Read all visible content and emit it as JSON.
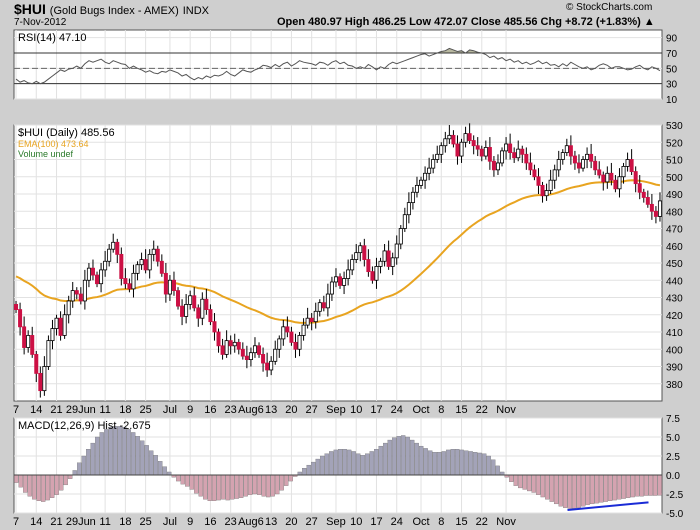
{
  "header": {
    "symbol": "$HUI",
    "name": "(Gold Bugs Index - AMEX)",
    "exchange": "INDX",
    "date": "7-Nov-2012",
    "quote": "Open 480.97  High 486.25  Low 472.07  Close 485.56  Chg +8.72 (+1.83%) ▲",
    "brand": "© StockCharts.com"
  },
  "colors": {
    "up": "#ffffff",
    "down": "#cc1044",
    "ema": "#e8a420",
    "macd_hist_pos": "#a3a3b8",
    "macd_hist_neg": "#d4a3b0",
    "trend": "#1a2bd6"
  },
  "chart_data": [
    {
      "type": "line",
      "title": "RSI(14) 47.10",
      "ylim": [
        10,
        100
      ],
      "yticks": [
        10,
        30,
        50,
        70,
        90
      ],
      "levels": [
        70,
        50,
        30
      ],
      "x": [
        0,
        1,
        2,
        3,
        4,
        5,
        6,
        7,
        8,
        9,
        10,
        11,
        12,
        13,
        14,
        15,
        16,
        17,
        18,
        19,
        20,
        21,
        22,
        23,
        24,
        25,
        26,
        27,
        28,
        29,
        30,
        31,
        32,
        33,
        34,
        35,
        36,
        37,
        38,
        39,
        40,
        41,
        42,
        43,
        44,
        45,
        46,
        47,
        48,
        49,
        50,
        51,
        52,
        53,
        54,
        55,
        56,
        57,
        58,
        59,
        60,
        61,
        62,
        63,
        64,
        65,
        66,
        67,
        68,
        69,
        70,
        71,
        72,
        73,
        74,
        75,
        76,
        77,
        78,
        79,
        80,
        81,
        82,
        83,
        84,
        85,
        86,
        87,
        88,
        89,
        90,
        91,
        92,
        93,
        94,
        95,
        96,
        97,
        98,
        99,
        100,
        101,
        102,
        103,
        104,
        105,
        106,
        107,
        108,
        109,
        110,
        111,
        112,
        113,
        114,
        115,
        116,
        117,
        118,
        119,
        120,
        121,
        122,
        123,
        124,
        125,
        126,
        127,
        128,
        129,
        130,
        131,
        132,
        133,
        134,
        135,
        136,
        137,
        138,
        139,
        140,
        141,
        142,
        143,
        144,
        145,
        146,
        147,
        148,
        149,
        150,
        151,
        152,
        153,
        154,
        155,
        156,
        157,
        158,
        159
      ],
      "values": [
        36,
        32,
        34,
        31,
        30,
        33,
        30,
        32,
        36,
        40,
        44,
        48,
        46,
        49,
        50,
        53,
        50,
        56,
        60,
        58,
        60,
        62,
        58,
        56,
        60,
        58,
        56,
        55,
        50,
        53,
        50,
        48,
        45,
        47,
        44,
        43,
        46,
        45,
        48,
        46,
        44,
        40,
        42,
        38,
        35,
        38,
        36,
        40,
        38,
        41,
        40,
        42,
        46,
        42,
        40,
        44,
        48,
        46,
        45,
        48,
        50,
        54,
        53,
        51,
        55,
        52,
        56,
        58,
        53,
        56,
        60,
        58,
        57,
        56,
        54,
        58,
        57,
        54,
        58,
        60,
        56,
        58,
        54,
        53,
        50,
        52,
        50,
        55,
        52,
        48,
        52,
        50,
        55,
        58,
        56,
        58,
        60,
        62,
        64,
        66,
        68,
        69,
        66,
        68,
        70,
        72,
        73,
        76,
        74,
        72,
        73,
        70,
        74,
        73,
        71,
        70,
        68,
        64,
        66,
        62,
        64,
        60,
        62,
        58,
        60,
        56,
        58,
        55,
        57,
        60,
        56,
        58,
        54,
        55,
        52,
        56,
        53,
        58,
        55,
        52,
        50,
        52,
        48,
        50,
        54,
        56,
        54,
        50,
        52,
        52,
        50,
        48,
        49,
        52,
        54,
        50,
        48,
        52,
        50,
        47
      ]
    },
    {
      "type": "candlestick",
      "title": "$HUI (Daily) 485.56",
      "legend": [
        "EMA(100) 473.64",
        "Volume undef"
      ],
      "ylim": [
        370,
        530
      ],
      "yticks": [
        380,
        390,
        400,
        410,
        420,
        430,
        440,
        450,
        460,
        470,
        480,
        490,
        500,
        510,
        520,
        530
      ],
      "xticks": [
        "7",
        "14",
        "21",
        "29Jun",
        "11",
        "18",
        "25",
        "Jul",
        "9",
        "16",
        "23",
        "Aug6",
        "13",
        "20",
        "27",
        "Sep",
        "10",
        "17",
        "24",
        "Oct",
        "8",
        "15",
        "22",
        "Nov"
      ],
      "closes": [
        423,
        413,
        401,
        408,
        397,
        386,
        376,
        390,
        405,
        412,
        418,
        408,
        420,
        428,
        434,
        432,
        428,
        440,
        447,
        443,
        438,
        446,
        451,
        458,
        462,
        455,
        441,
        438,
        435,
        444,
        449,
        452,
        446,
        455,
        458,
        451,
        444,
        432,
        440,
        434,
        425,
        419,
        426,
        431,
        424,
        418,
        429,
        423,
        416,
        410,
        402,
        397,
        405,
        402,
        404,
        400,
        396,
        394,
        398,
        402,
        397,
        392,
        388,
        393,
        400,
        406,
        413,
        410,
        404,
        400,
        408,
        414,
        418,
        416,
        422,
        427,
        424,
        432,
        439,
        442,
        437,
        441,
        446,
        452,
        456,
        460,
        452,
        445,
        440,
        448,
        451,
        457,
        448,
        453,
        461,
        470,
        478,
        485,
        491,
        495,
        498,
        502,
        505,
        510,
        513,
        518,
        522,
        524,
        519,
        512,
        520,
        525,
        521,
        518,
        516,
        512,
        517,
        509,
        504,
        508,
        515,
        519,
        514,
        511,
        516,
        513,
        508,
        504,
        500,
        495,
        489,
        492,
        498,
        504,
        510,
        514,
        518,
        512,
        508,
        505,
        510,
        513,
        509,
        504,
        501,
        497,
        502,
        498,
        493,
        500,
        506,
        510,
        503,
        496,
        491,
        488,
        484,
        480,
        477,
        486
      ]
    },
    {
      "type": "bar",
      "title": "MACD(12,26,9) Hist -2.675",
      "ylim": [
        -5,
        7.5
      ],
      "yticks": [
        -5.0,
        -2.5,
        0.0,
        2.5,
        5.0,
        7.5
      ],
      "values": [
        -1.0,
        -1.6,
        -2.3,
        -2.8,
        -3.2,
        -3.4,
        -3.5,
        -3.3,
        -3.0,
        -2.6,
        -2.0,
        -1.3,
        -0.5,
        0.6,
        1.6,
        2.5,
        3.4,
        4.2,
        5.0,
        5.6,
        6.0,
        6.3,
        6.4,
        6.4,
        6.3,
        6.0,
        5.6,
        5.1,
        4.5,
        3.9,
        3.2,
        2.6,
        1.8,
        1.1,
        0.4,
        -0.3,
        -0.8,
        -1.2,
        -1.5,
        -1.9,
        -2.4,
        -2.8,
        -3.2,
        -3.4,
        -3.4,
        -3.3,
        -3.2,
        -3.3,
        -3.2,
        -3.1,
        -3.0,
        -2.8,
        -2.6,
        -2.5,
        -2.6,
        -2.8,
        -2.9,
        -2.8,
        -2.5,
        -2.0,
        -1.4,
        -0.8,
        -0.2,
        0.4,
        0.9,
        1.3,
        1.7,
        2.1,
        2.5,
        2.8,
        3.1,
        3.3,
        3.4,
        3.4,
        3.3,
        3.1,
        2.8,
        2.6,
        2.8,
        3.1,
        3.4,
        3.8,
        4.2,
        4.6,
        4.9,
        5.1,
        5.2,
        5.0,
        4.6,
        4.2,
        3.8,
        3.5,
        3.2,
        3.0,
        3.0,
        3.1,
        3.3,
        3.4,
        3.4,
        3.3,
        3.2,
        3.1,
        3.0,
        2.9,
        2.8,
        2.5,
        2.0,
        1.2,
        0.4,
        -0.3,
        -0.9,
        -1.4,
        -1.7,
        -1.9,
        -2.1,
        -2.3,
        -2.6,
        -2.9,
        -3.2,
        -3.5,
        -3.8,
        -4.1,
        -4.3,
        -4.4,
        -4.4,
        -4.3,
        -4.1,
        -3.9,
        -3.8,
        -3.7,
        -3.6,
        -3.5,
        -3.4,
        -3.3,
        -3.2,
        -3.1,
        -3.0,
        -2.9,
        -2.8,
        -2.8,
        -2.7,
        -2.7,
        -2.7,
        -2.675
      ],
      "trendline": {
        "from": {
          "x": 123,
          "y": -4.6
        },
        "to": {
          "x": 141,
          "y": -3.6
        }
      }
    }
  ],
  "xaxis_labels": [
    "7",
    "14",
    "21",
    "29Jun",
    "11",
    "18",
    "25",
    "Jul",
    "9",
    "16",
    "23",
    "Aug6",
    "13",
    "20",
    "27",
    "Sep",
    "10",
    "17",
    "24",
    "Oct",
    "8",
    "15",
    "22",
    "Nov"
  ]
}
